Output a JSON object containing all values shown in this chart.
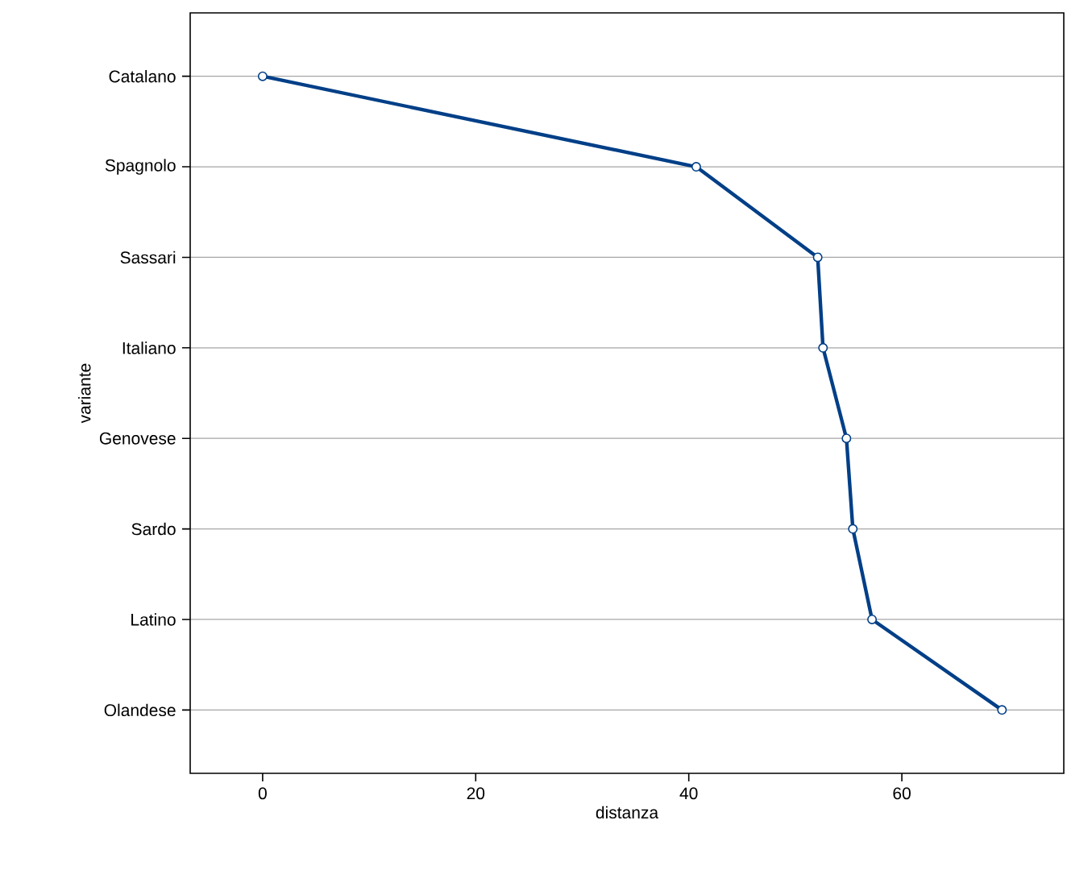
{
  "chart_data": {
    "type": "line",
    "orientation": "horizontal",
    "xlabel": "distanza",
    "ylabel": "variante",
    "categories": [
      "Catalano",
      "Spagnolo",
      "Sassari",
      "Italiano",
      "Genovese",
      "Sardo",
      "Latino",
      "Olandese"
    ],
    "series": [
      {
        "color": "#003f87",
        "values": [
          0,
          40.7,
          52.1,
          52.6,
          54.8,
          55.4,
          57.2,
          69.4
        ]
      }
    ],
    "xlim": [
      -6.8,
      75.2
    ],
    "xticks": [
      0,
      20,
      40,
      60
    ],
    "grid": "y",
    "marker": "circle",
    "line_style": "solid"
  }
}
